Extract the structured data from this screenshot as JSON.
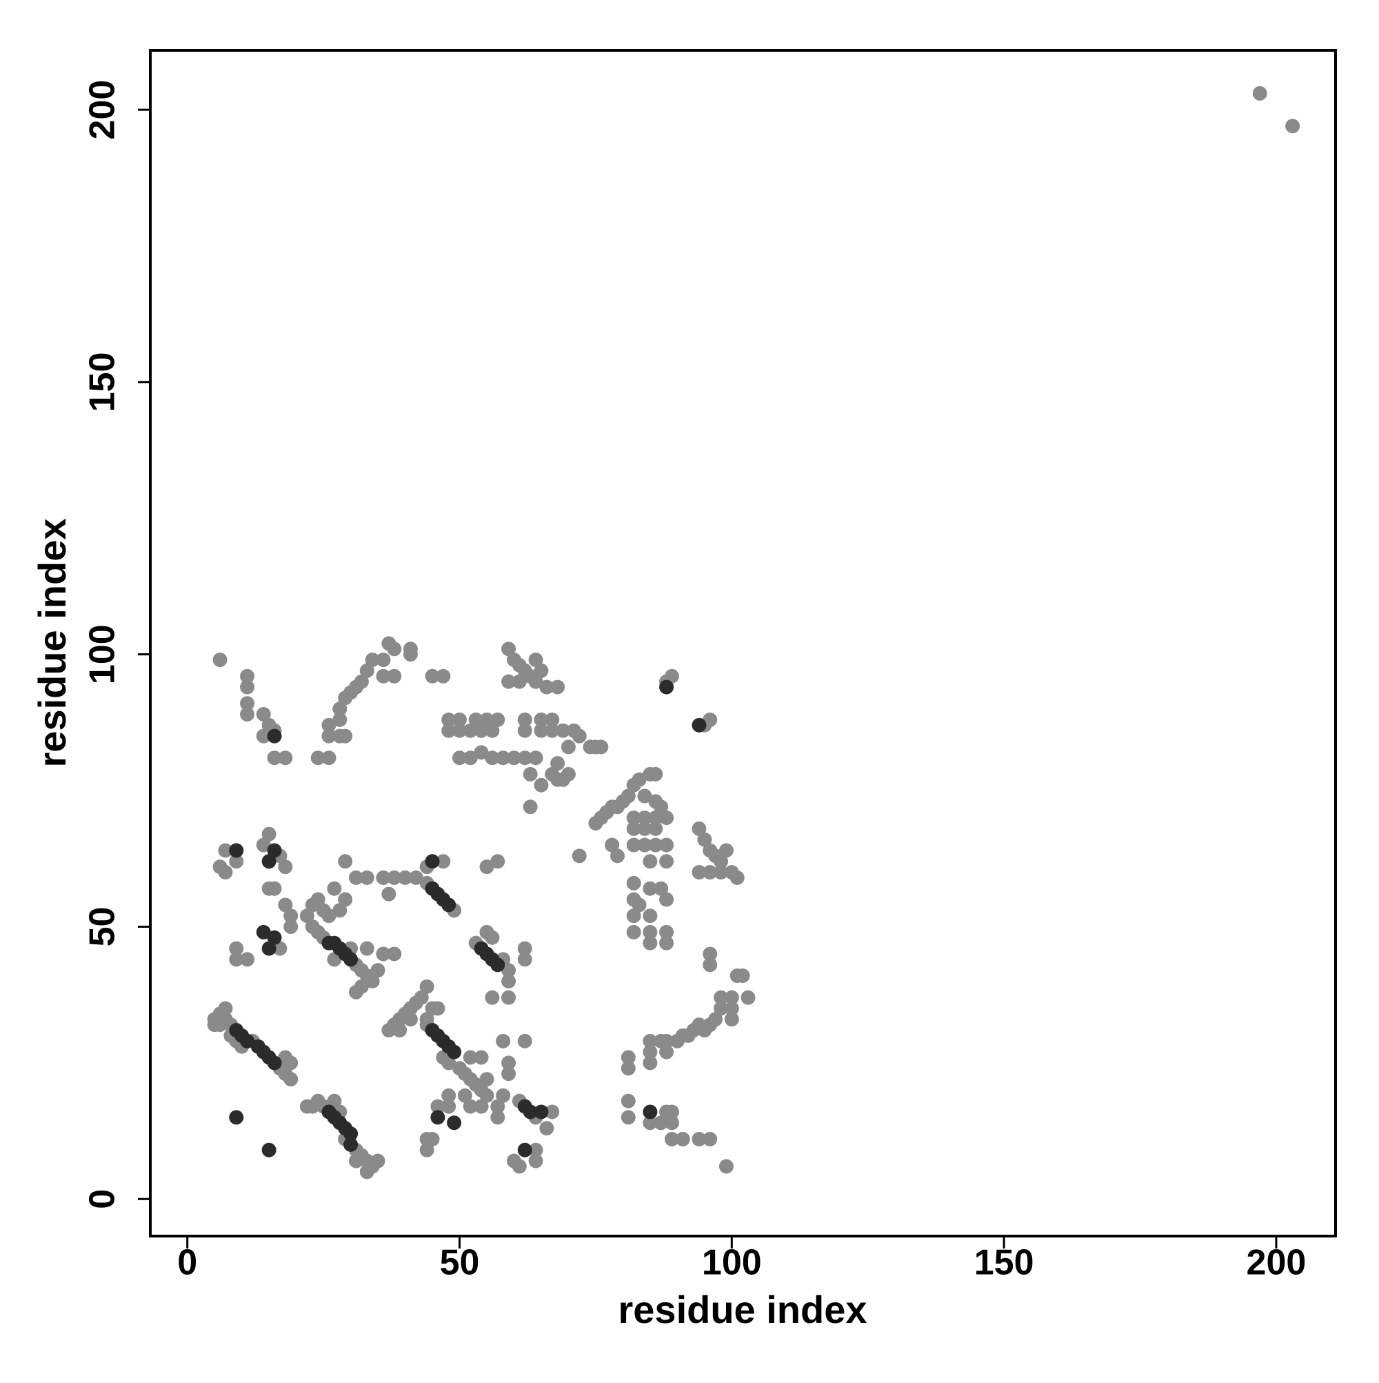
{
  "chart_data": {
    "type": "scatter",
    "xlabel": "residue index",
    "ylabel": "residue index",
    "xlim": [
      -6.8,
      210.9
    ],
    "ylim": [
      -6.8,
      210.9
    ],
    "xticks": [
      0,
      50,
      100,
      150,
      200
    ],
    "yticks": [
      0,
      50,
      100,
      150,
      200
    ],
    "grid": false,
    "series": [
      {
        "color": "#8a8a8a",
        "x": [
          6,
          7,
          8,
          12,
          17,
          18,
          19,
          5,
          5,
          6,
          7,
          8,
          9,
          10,
          19,
          18,
          22,
          23,
          24,
          25,
          31,
          32,
          33,
          34,
          33,
          35,
          27,
          28,
          29,
          31,
          23,
          24,
          25,
          31,
          32,
          33,
          31,
          32,
          34,
          35,
          36,
          38,
          30,
          22,
          23,
          24,
          25,
          26,
          27,
          29,
          28,
          37,
          38,
          39,
          40,
          41,
          42,
          43,
          44,
          48,
          47,
          44,
          46,
          50,
          51,
          52,
          53,
          54,
          55,
          54,
          52,
          44,
          49,
          47,
          40,
          38,
          36,
          42,
          44,
          37,
          53,
          58,
          59,
          59,
          59,
          56,
          55,
          62,
          62,
          56,
          57,
          55,
          61,
          64,
          66,
          67,
          64,
          64,
          60,
          61,
          6,
          11,
          11,
          11,
          11,
          14,
          15,
          16,
          14,
          16,
          18,
          24,
          26,
          26,
          28,
          29,
          26,
          28,
          28,
          29,
          30,
          31,
          32,
          33,
          34,
          36,
          37,
          38,
          38,
          36,
          41,
          41,
          45,
          47,
          48,
          50,
          48,
          50,
          52,
          54,
          56,
          50,
          52,
          54,
          56,
          58,
          60,
          62,
          64,
          53,
          55,
          57,
          62,
          65,
          67,
          62,
          65,
          67,
          69,
          71,
          72,
          74,
          75,
          76,
          70,
          68,
          67,
          68,
          69,
          70,
          65,
          63,
          63,
          59,
          60,
          61,
          62,
          63,
          64,
          66,
          68,
          59,
          61,
          64,
          65,
          72,
          75,
          76,
          77,
          78,
          79,
          80,
          81,
          82,
          83,
          85,
          86,
          87,
          84,
          82,
          84,
          86,
          88,
          82,
          84,
          86,
          78,
          82,
          84,
          86,
          88,
          79,
          85,
          88,
          82,
          82,
          82,
          82,
          83,
          85,
          85,
          85,
          85,
          87,
          88,
          88,
          88,
          94,
          95,
          96,
          97,
          98,
          99,
          94,
          96,
          98,
          100,
          101,
          95,
          96,
          89,
          88,
          86,
          81,
          81,
          81,
          85,
          85,
          85,
          87,
          88,
          88,
          90,
          91,
          92,
          93,
          94,
          95,
          96,
          97,
          98,
          98,
          100,
          100,
          101,
          102,
          103,
          100,
          96,
          96,
          85,
          87,
          88,
          89,
          89,
          89,
          91,
          94,
          96,
          99,
          81,
          7,
          9,
          6,
          7,
          14,
          15,
          17,
          18,
          16,
          15,
          18,
          19,
          19,
          17,
          9,
          9,
          11,
          31,
          33,
          29,
          27,
          33,
          44,
          44,
          45,
          46,
          48,
          48,
          51,
          52,
          55,
          54,
          57,
          57,
          58,
          59,
          59,
          58,
          62,
          45,
          44,
          41,
          39,
          197,
          203
        ],
        "values": [
          34,
          33,
          32,
          29,
          24,
          23,
          22,
          33,
          32,
          32,
          35,
          30,
          29,
          28,
          25,
          26,
          17,
          17,
          18,
          17,
          9,
          8,
          7,
          6,
          5,
          7,
          18,
          16,
          11,
          7,
          50,
          49,
          48,
          43,
          42,
          41,
          38,
          39,
          40,
          42,
          45,
          45,
          46,
          52,
          54,
          55,
          53,
          52,
          57,
          62,
          53,
          31,
          32,
          33,
          34,
          35,
          36,
          37,
          32,
          25,
          26,
          39,
          35,
          24,
          23,
          22,
          21,
          20,
          22,
          26,
          26,
          58,
          53,
          62,
          59,
          59,
          59,
          59,
          61,
          56,
          47,
          44,
          42,
          40,
          37,
          48,
          49,
          46,
          44,
          37,
          62,
          61,
          18,
          15,
          13,
          16,
          7,
          9,
          7,
          6,
          99,
          96,
          94,
          91,
          89,
          89,
          87,
          86,
          85,
          81,
          81,
          81,
          81,
          85,
          85,
          85,
          87,
          88,
          90,
          92,
          93,
          94,
          95,
          97,
          99,
          99,
          102,
          101,
          96,
          96,
          101,
          100,
          96,
          96,
          88,
          88,
          86,
          86,
          86,
          86,
          86,
          81,
          81,
          82,
          81,
          81,
          81,
          81,
          81,
          88,
          88,
          88,
          88,
          88,
          88,
          86,
          86,
          86,
          86,
          86,
          85,
          83,
          83,
          83,
          83,
          80,
          78,
          77,
          77,
          78,
          76,
          78,
          72,
          101,
          99,
          98,
          97,
          96,
          95,
          94,
          94,
          95,
          95,
          99,
          97,
          63,
          69,
          70,
          71,
          72,
          72,
          73,
          74,
          76,
          77,
          78,
          73,
          72,
          74,
          70,
          70,
          70,
          70,
          68,
          68,
          68,
          65,
          65,
          65,
          65,
          65,
          63,
          62,
          62,
          58,
          55,
          52,
          49,
          54,
          57,
          52,
          49,
          47,
          57,
          55,
          49,
          47,
          68,
          66,
          64,
          63,
          62,
          64,
          60,
          60,
          60,
          60,
          59,
          87,
          88,
          96,
          95,
          78,
          26,
          24,
          18,
          29,
          27,
          25,
          29,
          27,
          29,
          29,
          30,
          30,
          31,
          32,
          31,
          32,
          33,
          35,
          37,
          35,
          37,
          41,
          41,
          37,
          33,
          43,
          45,
          14,
          14,
          16,
          16,
          14,
          11,
          11,
          11,
          11,
          6,
          15,
          64,
          62,
          61,
          60,
          65,
          67,
          63,
          61,
          57,
          57,
          54,
          52,
          50,
          46,
          46,
          44,
          44,
          59,
          59,
          55,
          44,
          46,
          11,
          9,
          11,
          17,
          19,
          17,
          19,
          17,
          19,
          17,
          15,
          17,
          19,
          23,
          25,
          29,
          29,
          35,
          33,
          33,
          31,
          203,
          197
        ]
      },
      {
        "color": "#2b2b2b",
        "x": [
          9,
          10,
          11,
          13,
          14,
          15,
          16,
          26,
          27,
          28,
          29,
          30,
          30,
          26,
          27,
          28,
          29,
          30,
          45,
          46,
          47,
          48,
          49,
          45,
          46,
          47,
          48,
          54,
          55,
          56,
          57,
          62,
          63,
          65,
          88,
          94,
          9,
          15,
          15,
          16,
          14,
          16,
          15,
          46,
          49,
          62,
          85,
          9,
          45,
          16
        ],
        "values": [
          31,
          30,
          29,
          28,
          27,
          26,
          25,
          16,
          15,
          14,
          13,
          12,
          10,
          47,
          47,
          46,
          45,
          44,
          31,
          30,
          29,
          28,
          27,
          57,
          56,
          55,
          54,
          46,
          45,
          44,
          43,
          17,
          16,
          16,
          94,
          87,
          15,
          9,
          62,
          64,
          49,
          48,
          46,
          15,
          14,
          9,
          16,
          64,
          62,
          85
        ]
      }
    ]
  }
}
